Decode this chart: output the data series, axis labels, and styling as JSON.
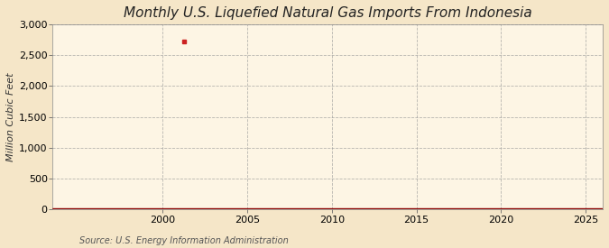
{
  "title": "Monthly U.S. Liquefied Natural Gas Imports From Indonesia",
  "ylabel": "Million Cubic Feet",
  "source": "Source: U.S. Energy Information Administration",
  "xlim": [
    1993.5,
    2026
  ],
  "ylim": [
    0,
    3000
  ],
  "yticks": [
    0,
    500,
    1000,
    1500,
    2000,
    2500,
    3000
  ],
  "xticks": [
    2000,
    2005,
    2010,
    2015,
    2020,
    2025
  ],
  "background_color": "#f5e6c8",
  "plot_bg_color": "#fdf5e4",
  "line_color": "#8b0000",
  "marker_color": "#cc2222",
  "grid_color": "#999999",
  "title_fontsize": 11,
  "ylabel_fontsize": 8,
  "tick_fontsize": 8,
  "source_fontsize": 7,
  "spike_x": 2001.25,
  "spike_y": 2730
}
